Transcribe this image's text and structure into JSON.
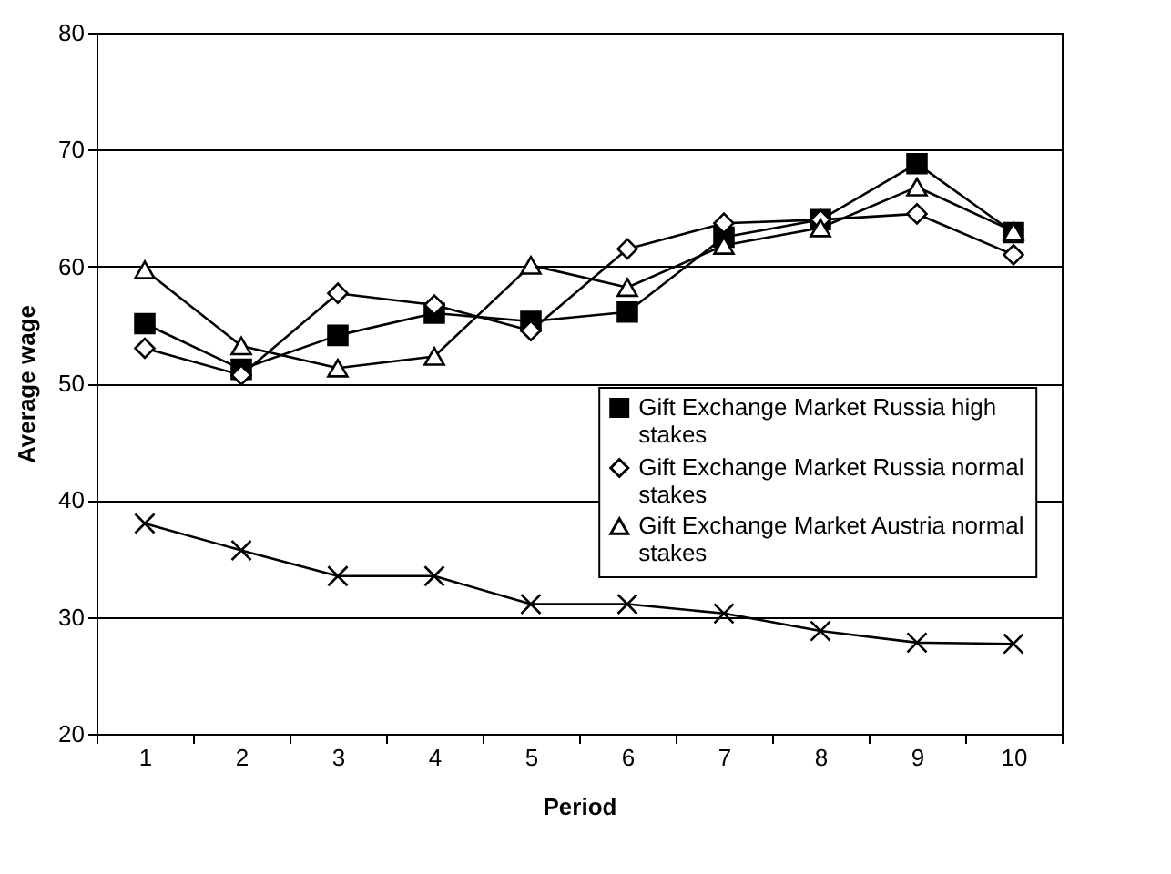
{
  "chart_data": {
    "type": "line",
    "xlabel": "Period",
    "ylabel": "Average wage",
    "categories": [
      "1",
      "2",
      "3",
      "4",
      "5",
      "6",
      "7",
      "8",
      "9",
      "10"
    ],
    "series": [
      {
        "name": "Gift Exchange Market Russia high stakes",
        "color": "#000000",
        "marker": "square",
        "values": [
          55.1,
          51.2,
          54.1,
          56,
          55.3,
          56.1,
          62.5,
          64,
          68.8,
          62.9
        ]
      },
      {
        "name": "Gift Exchange Market Russia normal stakes",
        "color": "#000000",
        "marker": "diamond",
        "values": [
          53,
          50.7,
          57.7,
          56.7,
          54.5,
          61.5,
          63.7,
          64,
          64.5,
          61
        ]
      },
      {
        "name": "Gift Exchange Market Austria normal stakes",
        "color": "#000000",
        "marker": "triangle",
        "values": [
          59.7,
          53.2,
          51.3,
          52.3,
          60.1,
          58.2,
          61.8,
          63.3,
          66.8,
          63
        ]
      },
      {
        "color": "#000000",
        "marker": "cross",
        "values": [
          38,
          35.7,
          33.5,
          33.5,
          31.1,
          31.1,
          30.3,
          28.8,
          27.8,
          27.7
        ]
      }
    ],
    "ylim": [
      20,
      80
    ],
    "yticks": [
      20,
      30,
      40,
      50,
      60,
      70,
      80
    ],
    "grid": "y",
    "legend": "right",
    "line_style": "solid"
  }
}
